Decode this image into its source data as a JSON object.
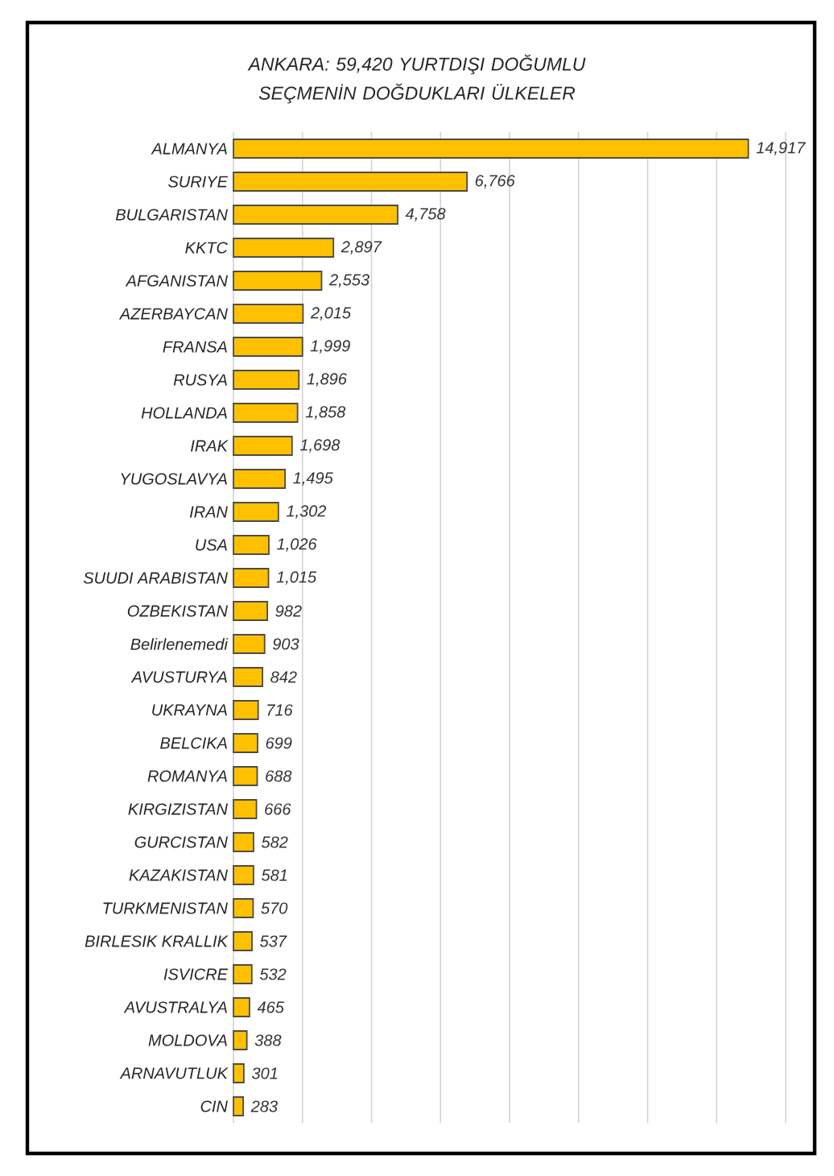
{
  "chart_data": {
    "type": "bar",
    "orientation": "horizontal",
    "title": "ANKARA: 59,420 YURTDIŞI DOĞUMLU SEÇMENİN DOĞDUKLARI ÜLKELER",
    "categories": [
      "ALMANYA",
      "SURIYE",
      "BULGARISTAN",
      "KKTC",
      "AFGANISTAN",
      "AZERBAYCAN",
      "FRANSA",
      "RUSYA",
      "HOLLANDA",
      "IRAK",
      "YUGOSLAVYA",
      "IRAN",
      "USA",
      "SUUDI ARABISTAN",
      "OZBEKISTAN",
      "Belirlenemedi",
      "AVUSTURYA",
      "UKRAYNA",
      "BELCIKA",
      "ROMANYA",
      "KIRGIZISTAN",
      "GURCISTAN",
      "KAZAKISTAN",
      "TURKMENISTAN",
      "BIRLESIK KRALLIK",
      "ISVICRE",
      "AVUSTRALYA",
      "MOLDOVA",
      "ARNAVUTLUK",
      "CIN"
    ],
    "values": [
      14917,
      6766,
      4758,
      2897,
      2553,
      2015,
      1999,
      1896,
      1858,
      1698,
      1495,
      1302,
      1026,
      1015,
      982,
      903,
      842,
      716,
      699,
      688,
      666,
      582,
      581,
      570,
      537,
      532,
      465,
      388,
      301,
      283
    ],
    "color": "#ffc000",
    "xlim": [
      0,
      16000
    ],
    "xticks": [
      0,
      2000,
      4000,
      6000,
      8000,
      10000,
      12000,
      14000,
      16000
    ],
    "value_labels": [
      "14,917",
      "6,766",
      "4,758",
      "2,897",
      "2,553",
      "2,015",
      "1,999",
      "1,896",
      "1,858",
      "1,698",
      "1,495",
      "1,302",
      "1,026",
      "1,015",
      "982",
      "903",
      "842",
      "716",
      "699",
      "688",
      "666",
      "582",
      "581",
      "570",
      "537",
      "532",
      "465",
      "388",
      "301",
      "283"
    ],
    "grid": "x",
    "tick_labels": "y"
  }
}
